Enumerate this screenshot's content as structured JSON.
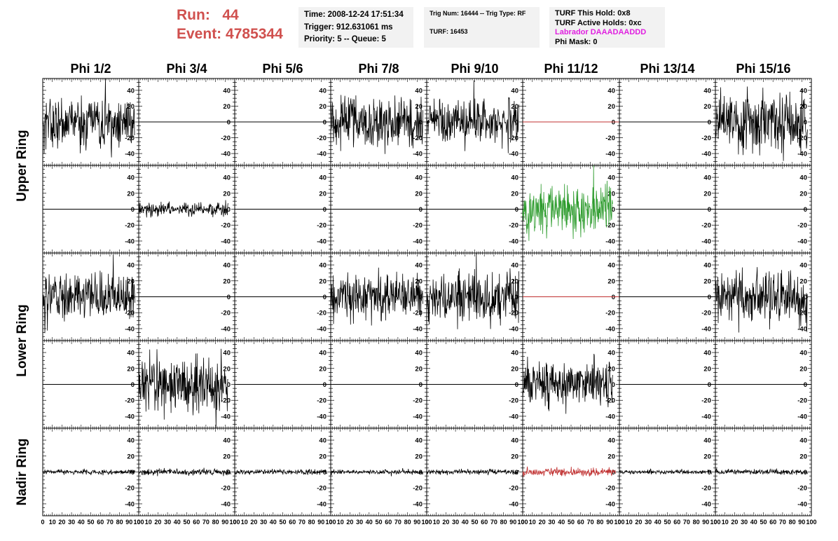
{
  "header": {
    "run_label": "Run:",
    "run_value": "44",
    "event_label": "Event:",
    "event_value": "4785344",
    "box1": [
      "Time: 2008-12-24 17:51:34",
      "Trigger: 912.631061 ms",
      "Priority: 5 -- Queue: 5"
    ],
    "box2": [
      "Trig Num: 16444 -- Trig Type: RF",
      "",
      "TURF: 16453"
    ],
    "box3": [
      "TURF This Hold: 0x8",
      "TURF Active Holds: 0xc",
      "Labrador DAAADAADDD",
      "Phi Mask: 0"
    ],
    "highlight_color": "#e020e0",
    "run_color": "#d0504e"
  },
  "chart_data": {
    "type": "line",
    "columns": [
      "Phi 1/2",
      "Phi 3/4",
      "Phi 5/6",
      "Phi 7/8",
      "Phi 9/10",
      "Phi 11/12",
      "Phi 13/14",
      "Phi 15/16"
    ],
    "rows": [
      "Upper Ring",
      "Lower Ring",
      "Nadir Ring"
    ],
    "ylim": [
      -55,
      55
    ],
    "y_ticks": [
      -40,
      -20,
      0,
      20,
      40
    ],
    "xlim": [
      0,
      100
    ],
    "x_tick_labels": [
      "0",
      "10",
      "20",
      "30",
      "40",
      "50",
      "60",
      "70",
      "80",
      "90",
      "100"
    ],
    "colors": {
      "normal": "#000000",
      "masked": "#c03030",
      "triggered": "#2a9a2a"
    },
    "panels": [
      [
        {
          "kind": "noisy",
          "amp": 16,
          "color": "#000000"
        },
        {
          "kind": "flat",
          "color": "#000000"
        },
        {
          "kind": "flat",
          "color": "#000000"
        },
        {
          "kind": "noisy",
          "amp": 16,
          "color": "#000000"
        },
        {
          "kind": "noisy",
          "amp": 14,
          "color": "#000000"
        },
        {
          "kind": "flat",
          "color": "#c03030"
        },
        {
          "kind": "flat",
          "color": "#000000"
        },
        {
          "kind": "noisy",
          "amp": 18,
          "color": "#000000"
        }
      ],
      [
        {
          "kind": "flat",
          "color": "#000000"
        },
        {
          "kind": "noisy",
          "amp": 4,
          "color": "#000000",
          "xmax": 93
        },
        {
          "kind": "flat",
          "color": "#000000"
        },
        {
          "kind": "flat",
          "color": "#000000"
        },
        {
          "kind": "flat",
          "color": "#000000"
        },
        {
          "kind": "noisy",
          "amp": 16,
          "color": "#2a9a2a",
          "xmax": 93
        },
        {
          "kind": "flat",
          "color": "#000000"
        },
        {
          "kind": "flat",
          "color": "#000000"
        }
      ],
      [
        {
          "kind": "noisy",
          "amp": 14,
          "color": "#000000"
        },
        {
          "kind": "flat",
          "color": "#000000"
        },
        {
          "kind": "flat",
          "color": "#000000"
        },
        {
          "kind": "noisy",
          "amp": 14,
          "color": "#000000"
        },
        {
          "kind": "noisy",
          "amp": 16,
          "color": "#000000"
        },
        {
          "kind": "flat",
          "color": "#c03030"
        },
        {
          "kind": "flat",
          "color": "#000000"
        },
        {
          "kind": "noisy",
          "amp": 16,
          "color": "#000000"
        }
      ],
      [
        {
          "kind": "flat",
          "color": "#000000"
        },
        {
          "kind": "noisy",
          "amp": 18,
          "color": "#000000",
          "xmax": 93
        },
        {
          "kind": "flat",
          "color": "#000000"
        },
        {
          "kind": "flat",
          "color": "#000000"
        },
        {
          "kind": "flat",
          "color": "#000000"
        },
        {
          "kind": "noisy",
          "amp": 14,
          "color": "#000000",
          "xmax": 93
        },
        {
          "kind": "flat",
          "color": "#000000"
        },
        {
          "kind": "flat",
          "color": "#000000"
        }
      ],
      [
        {
          "kind": "noisy",
          "amp": 1.5,
          "color": "#000000"
        },
        {
          "kind": "noisy",
          "amp": 2,
          "color": "#000000"
        },
        {
          "kind": "noisy",
          "amp": 1.5,
          "color": "#000000"
        },
        {
          "kind": "noisy",
          "amp": 1.5,
          "color": "#000000"
        },
        {
          "kind": "noisy",
          "amp": 1.5,
          "color": "#000000"
        },
        {
          "kind": "noisy",
          "amp": 2.5,
          "color": "#c03030"
        },
        {
          "kind": "noisy",
          "amp": 1.2,
          "color": "#000000"
        },
        {
          "kind": "noisy",
          "amp": 1.5,
          "color": "#000000"
        }
      ]
    ]
  }
}
